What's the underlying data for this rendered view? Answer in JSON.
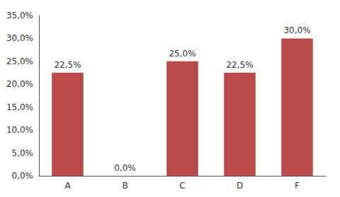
{
  "chart_data": {
    "type": "bar",
    "categories": [
      "A",
      "B",
      "C",
      "D",
      "F"
    ],
    "values": [
      0.225,
      0.0,
      0.25,
      0.225,
      0.3
    ],
    "value_labels": [
      "22,5%",
      "0,0%",
      "25,0%",
      "22,5%",
      "30,0%"
    ],
    "data_labels": true,
    "color": "#b94a48",
    "ylim": [
      0,
      0.35
    ],
    "yticks": [
      {
        "value": 0.0,
        "label": "0,0%"
      },
      {
        "value": 0.05,
        "label": "5,0%"
      },
      {
        "value": 0.1,
        "label": "10,0%"
      },
      {
        "value": 0.15,
        "label": "15,0%"
      },
      {
        "value": 0.2,
        "label": "20,0%"
      },
      {
        "value": 0.25,
        "label": "25,0%"
      },
      {
        "value": 0.3,
        "label": "30,0%"
      },
      {
        "value": 0.35,
        "label": "35,0%"
      }
    ],
    "grid": false
  }
}
